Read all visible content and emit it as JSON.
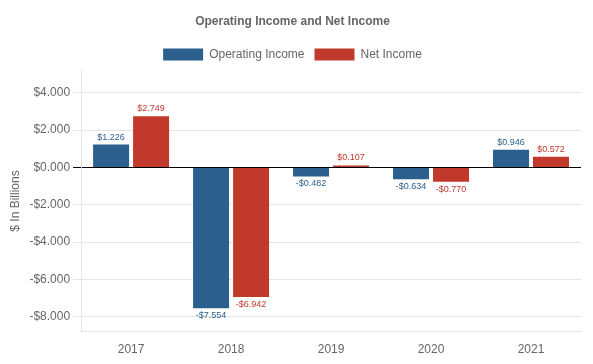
{
  "chart_data": {
    "type": "bar",
    "title": "Operating Income and Net Income",
    "ylabel": "$ In Billions",
    "categories": [
      "2017",
      "2018",
      "2019",
      "2020",
      "2021"
    ],
    "series": [
      {
        "name": "Operating Income",
        "color": "#2B5F8E",
        "values": [
          1.226,
          -7.554,
          -0.482,
          -0.634,
          0.946
        ],
        "value_labels": [
          "$1.226",
          "-$7.554",
          "-$0.482",
          "-$0.634",
          "$0.946"
        ]
      },
      {
        "name": "Net Income",
        "color": "#C0392B",
        "values": [
          2.749,
          -6.942,
          0.107,
          -0.77,
          0.572
        ],
        "value_labels": [
          "$2.749",
          "-$6.942",
          "$0.107",
          "-$0.770",
          "$0.572"
        ]
      }
    ],
    "ylim": [
      -8.8,
      5.2
    ],
    "yticks": [
      {
        "value": -8.0,
        "label": "-$8.000"
      },
      {
        "value": -6.0,
        "label": "-$6.000"
      },
      {
        "value": -4.0,
        "label": "-$4.000"
      },
      {
        "value": -2.0,
        "label": "-$2.000"
      },
      {
        "value": 0.0,
        "label": "$0.000"
      },
      {
        "value": 2.0,
        "label": "$2.000"
      },
      {
        "value": 4.0,
        "label": "$4.000"
      }
    ],
    "grid": true,
    "legend": "top",
    "data_labels": true
  }
}
